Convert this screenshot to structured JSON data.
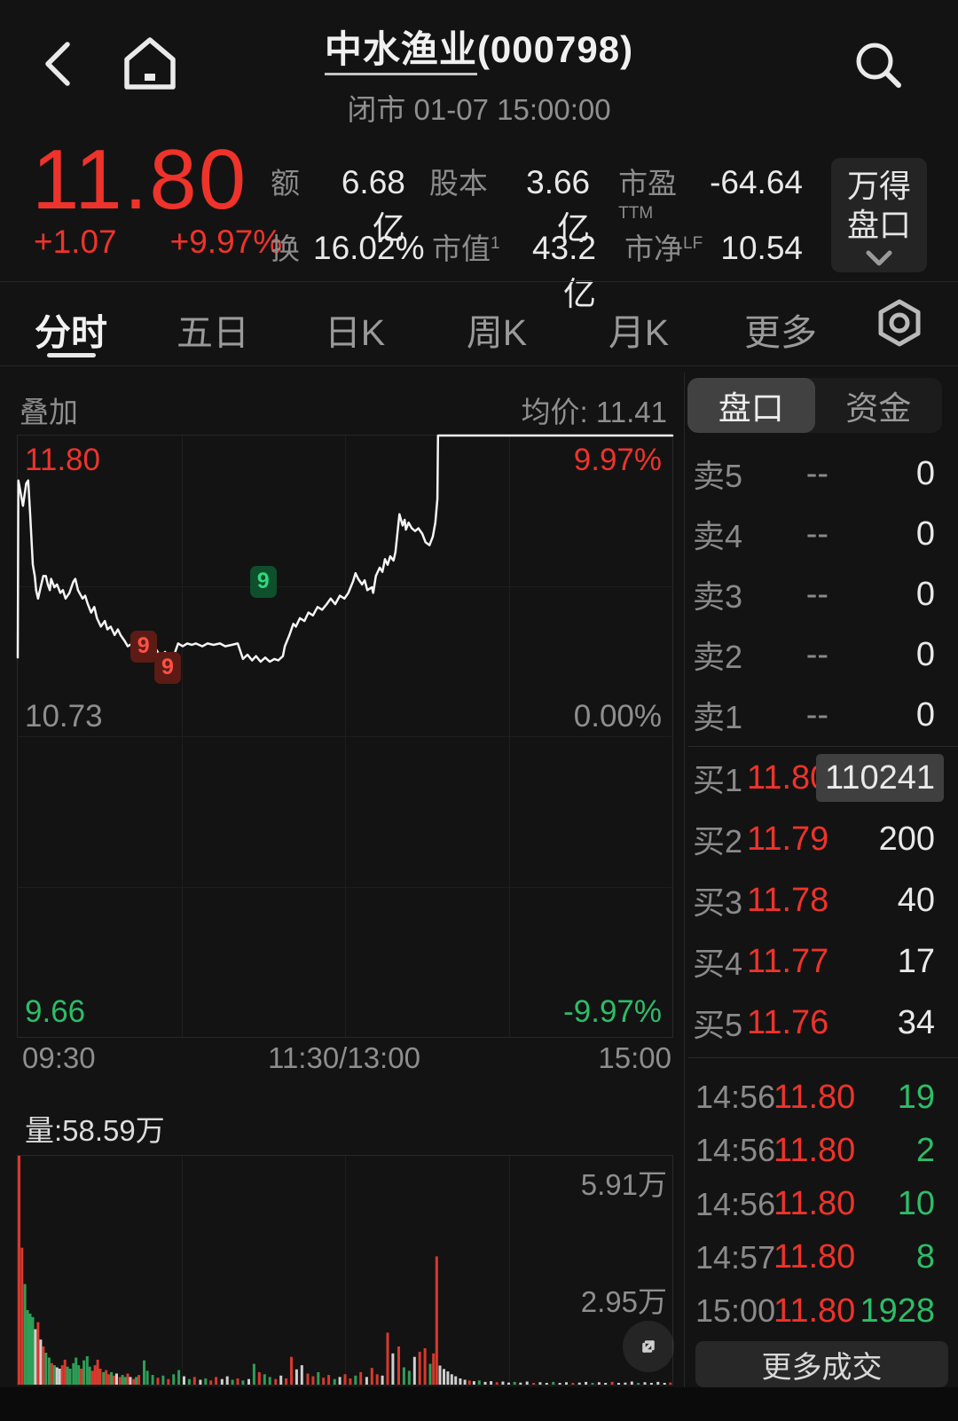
{
  "header": {
    "title_name": "中水渔业",
    "title_code": "(000798)",
    "subtitle": "闭市 01-07 15:00:00"
  },
  "quote": {
    "price": "11.80",
    "change": "+1.07",
    "change_pct": "+9.97%",
    "stats": [
      {
        "label": "额",
        "sup": "",
        "value": "6.68亿"
      },
      {
        "label": "股本",
        "sup": "",
        "value": "3.66亿"
      },
      {
        "label": "市盈",
        "sup": "TTM",
        "value": "-64.64"
      },
      {
        "label": "换",
        "sup": "",
        "value": "16.02%"
      },
      {
        "label": "市值",
        "sup": "1",
        "value": "43.2亿"
      },
      {
        "label": "市净",
        "sup": "LF",
        "value": "10.54"
      }
    ],
    "wind_button": {
      "line1": "万得",
      "line2": "盘口"
    }
  },
  "period_tabs": {
    "items": [
      "分时",
      "五日",
      "日K",
      "周K",
      "月K",
      "更多"
    ],
    "active": 0
  },
  "chart_header": {
    "overlay": "叠加",
    "avg_label": "均价: 11.41"
  },
  "panel_tabs": {
    "items": [
      "盘口",
      "资金"
    ],
    "active": 0
  },
  "order_book": {
    "sells": [
      {
        "label": "卖5",
        "price": "--",
        "volume": "0"
      },
      {
        "label": "卖4",
        "price": "--",
        "volume": "0"
      },
      {
        "label": "卖3",
        "price": "--",
        "volume": "0"
      },
      {
        "label": "卖2",
        "price": "--",
        "volume": "0"
      },
      {
        "label": "卖1",
        "price": "--",
        "volume": "0"
      }
    ],
    "buys": [
      {
        "label": "买1",
        "price": "11.80",
        "volume": "110241",
        "highlight": true
      },
      {
        "label": "买2",
        "price": "11.79",
        "volume": "200"
      },
      {
        "label": "买3",
        "price": "11.78",
        "volume": "40"
      },
      {
        "label": "买4",
        "price": "11.77",
        "volume": "17"
      },
      {
        "label": "买5",
        "price": "11.76",
        "volume": "34"
      }
    ]
  },
  "trades": {
    "rows": [
      {
        "time": "14:56",
        "price": "11.80",
        "volume": "19"
      },
      {
        "time": "14:56",
        "price": "11.80",
        "volume": "2"
      },
      {
        "time": "14:56",
        "price": "11.80",
        "volume": "10"
      },
      {
        "time": "14:57",
        "price": "11.80",
        "volume": "8"
      },
      {
        "time": "15:00",
        "price": "11.80",
        "volume": "1928"
      }
    ],
    "more_label": "更多成交"
  },
  "colors": {
    "red": "#ee332b",
    "green": "#2dbd68",
    "gray": "#8e8e8e",
    "white": "#e9e9e9",
    "bar_red": "#d9392d",
    "bar_green": "#2f9e57",
    "bar_white": "#cfcfcf",
    "line": "#f5f5f5"
  },
  "chart_data": {
    "type": "line",
    "title": "中水渔业(000798) 分时",
    "price_chart": {
      "ylim": [
        9.66,
        11.8
      ],
      "prev_close": 10.73,
      "labels": {
        "top_left": "11.80",
        "top_right": "9.97%",
        "mid_left": "10.73",
        "mid_right": "0.00%",
        "bottom_left": "9.66",
        "bottom_right": "-9.97%"
      },
      "x_axis": [
        "09:30",
        "11:30/13:00",
        "15:00"
      ],
      "markers": [
        {
          "fx": 0.192,
          "fy": 0.351,
          "text": "9",
          "color": "red"
        },
        {
          "fx": 0.229,
          "fy": 0.386,
          "text": "9",
          "color": "red"
        },
        {
          "fx": 0.375,
          "fy": 0.243,
          "text": "9",
          "color": "green"
        }
      ],
      "line": [
        [
          0.0,
          11.01
        ],
        [
          0.001,
          11.64
        ],
        [
          0.008,
          11.55
        ],
        [
          0.013,
          11.63
        ],
        [
          0.016,
          11.64
        ],
        [
          0.019,
          11.52
        ],
        [
          0.023,
          11.34
        ],
        [
          0.026,
          11.3
        ],
        [
          0.028,
          11.25
        ],
        [
          0.031,
          11.22
        ],
        [
          0.035,
          11.26
        ],
        [
          0.039,
          11.3
        ],
        [
          0.043,
          11.3
        ],
        [
          0.046,
          11.27
        ],
        [
          0.049,
          11.25
        ],
        [
          0.051,
          11.29
        ],
        [
          0.056,
          11.26
        ],
        [
          0.06,
          11.27
        ],
        [
          0.065,
          11.24
        ],
        [
          0.069,
          11.25
        ],
        [
          0.073,
          11.22
        ],
        [
          0.079,
          11.24
        ],
        [
          0.085,
          11.28
        ],
        [
          0.088,
          11.29
        ],
        [
          0.092,
          11.25
        ],
        [
          0.099,
          11.22
        ],
        [
          0.103,
          11.23
        ],
        [
          0.107,
          11.2
        ],
        [
          0.112,
          11.17
        ],
        [
          0.117,
          11.19
        ],
        [
          0.121,
          11.15
        ],
        [
          0.127,
          11.12
        ],
        [
          0.133,
          11.14
        ],
        [
          0.137,
          11.11
        ],
        [
          0.142,
          11.12
        ],
        [
          0.148,
          11.09
        ],
        [
          0.153,
          11.11
        ],
        [
          0.157,
          11.09
        ],
        [
          0.163,
          11.07
        ],
        [
          0.168,
          11.05
        ],
        [
          0.175,
          11.06
        ],
        [
          0.182,
          11.04
        ],
        [
          0.187,
          11.05
        ],
        [
          0.192,
          11.03
        ],
        [
          0.198,
          11.04
        ],
        [
          0.205,
          11.02
        ],
        [
          0.211,
          11.04
        ],
        [
          0.218,
          11.015
        ],
        [
          0.225,
          11.03
        ],
        [
          0.232,
          11.01
        ],
        [
          0.239,
          11.02
        ],
        [
          0.245,
          11.06
        ],
        [
          0.252,
          11.05
        ],
        [
          0.259,
          11.06
        ],
        [
          0.266,
          11.055
        ],
        [
          0.272,
          11.06
        ],
        [
          0.282,
          11.05
        ],
        [
          0.29,
          11.06
        ],
        [
          0.299,
          11.055
        ],
        [
          0.309,
          11.06
        ],
        [
          0.317,
          11.05
        ],
        [
          0.327,
          11.055
        ],
        [
          0.336,
          11.06
        ],
        [
          0.344,
          11.005
        ],
        [
          0.351,
          11.02
        ],
        [
          0.358,
          11.0
        ],
        [
          0.364,
          11.015
        ],
        [
          0.371,
          10.995
        ],
        [
          0.378,
          11.01
        ],
        [
          0.385,
          10.995
        ],
        [
          0.392,
          11.005
        ],
        [
          0.398,
          11.0
        ],
        [
          0.405,
          11.015
        ],
        [
          0.408,
          11.05
        ],
        [
          0.415,
          11.09
        ],
        [
          0.421,
          11.13
        ],
        [
          0.425,
          11.12
        ],
        [
          0.431,
          11.15
        ],
        [
          0.438,
          11.14
        ],
        [
          0.444,
          11.17
        ],
        [
          0.451,
          11.16
        ],
        [
          0.458,
          11.19
        ],
        [
          0.465,
          11.18
        ],
        [
          0.472,
          11.2
        ],
        [
          0.478,
          11.22
        ],
        [
          0.485,
          11.2
        ],
        [
          0.492,
          11.23
        ],
        [
          0.499,
          11.22
        ],
        [
          0.505,
          11.24
        ],
        [
          0.512,
          11.28
        ],
        [
          0.516,
          11.31
        ],
        [
          0.52,
          11.29
        ],
        [
          0.526,
          11.27
        ],
        [
          0.53,
          11.285
        ],
        [
          0.534,
          11.25
        ],
        [
          0.541,
          11.26
        ],
        [
          0.543,
          11.24
        ],
        [
          0.547,
          11.3
        ],
        [
          0.553,
          11.33
        ],
        [
          0.557,
          11.315
        ],
        [
          0.561,
          11.36
        ],
        [
          0.565,
          11.34
        ],
        [
          0.569,
          11.37
        ],
        [
          0.574,
          11.355
        ],
        [
          0.577,
          11.385
        ],
        [
          0.583,
          11.52
        ],
        [
          0.588,
          11.48
        ],
        [
          0.591,
          11.5
        ],
        [
          0.593,
          11.465
        ],
        [
          0.597,
          11.49
        ],
        [
          0.602,
          11.47
        ],
        [
          0.607,
          11.46
        ],
        [
          0.612,
          11.47
        ],
        [
          0.618,
          11.45
        ],
        [
          0.623,
          11.42
        ],
        [
          0.629,
          11.41
        ],
        [
          0.634,
          11.44
        ],
        [
          0.638,
          11.49
        ],
        [
          0.641,
          11.575
        ],
        [
          0.642,
          11.8
        ],
        [
          1.0,
          11.8
        ]
      ]
    },
    "volume_chart": {
      "label": "量:58.59万",
      "right_labels": [
        "5.91万",
        "2.95万"
      ],
      "unit": "万",
      "vmax": 6.6,
      "bars": [
        [
          0.0,
          6.6,
          "r"
        ],
        [
          0.0045,
          3.95,
          "r"
        ],
        [
          0.009,
          2.9,
          "g"
        ],
        [
          0.013,
          2.15,
          "g"
        ],
        [
          0.017,
          2.05,
          "g"
        ],
        [
          0.021,
          1.95,
          "g"
        ],
        [
          0.025,
          1.6,
          "w"
        ],
        [
          0.029,
          1.8,
          "r"
        ],
        [
          0.033,
          1.3,
          "w"
        ],
        [
          0.037,
          1.1,
          "r"
        ],
        [
          0.041,
          0.92,
          "g"
        ],
        [
          0.046,
          0.78,
          "g"
        ],
        [
          0.05,
          0.62,
          "r"
        ],
        [
          0.054,
          0.56,
          "g"
        ],
        [
          0.058,
          0.5,
          "w"
        ],
        [
          0.062,
          0.46,
          "w"
        ],
        [
          0.066,
          0.56,
          "r"
        ],
        [
          0.07,
          0.72,
          "r"
        ],
        [
          0.074,
          0.52,
          "g"
        ],
        [
          0.078,
          0.46,
          "g"
        ],
        [
          0.083,
          0.62,
          "g"
        ],
        [
          0.087,
          0.78,
          "g"
        ],
        [
          0.091,
          0.56,
          "g"
        ],
        [
          0.095,
          0.46,
          "r"
        ],
        [
          0.099,
          0.7,
          "g"
        ],
        [
          0.104,
          0.82,
          "g"
        ],
        [
          0.108,
          0.52,
          "g"
        ],
        [
          0.112,
          0.4,
          "r"
        ],
        [
          0.116,
          0.56,
          "r"
        ],
        [
          0.12,
          0.72,
          "r"
        ],
        [
          0.124,
          0.46,
          "r"
        ],
        [
          0.129,
          0.36,
          "g"
        ],
        [
          0.133,
          0.42,
          "r"
        ],
        [
          0.137,
          0.3,
          "r"
        ],
        [
          0.141,
          0.36,
          "g"
        ],
        [
          0.145,
          0.26,
          "r"
        ],
        [
          0.149,
          0.32,
          "w"
        ],
        [
          0.154,
          0.22,
          "r"
        ],
        [
          0.158,
          0.28,
          "g"
        ],
        [
          0.162,
          0.22,
          "g"
        ],
        [
          0.166,
          0.32,
          "r"
        ],
        [
          0.17,
          0.22,
          "w"
        ],
        [
          0.175,
          0.16,
          "r"
        ],
        [
          0.179,
          0.22,
          "g"
        ],
        [
          0.183,
          0.28,
          "r"
        ],
        [
          0.191,
          0.7,
          "g"
        ],
        [
          0.196,
          0.4,
          "g"
        ],
        [
          0.204,
          0.28,
          "g"
        ],
        [
          0.212,
          0.2,
          "r"
        ],
        [
          0.22,
          0.26,
          "g"
        ],
        [
          0.228,
          0.16,
          "r"
        ],
        [
          0.236,
          0.3,
          "g"
        ],
        [
          0.244,
          0.42,
          "g"
        ],
        [
          0.252,
          0.24,
          "w"
        ],
        [
          0.26,
          0.16,
          "g"
        ],
        [
          0.268,
          0.22,
          "r"
        ],
        [
          0.277,
          0.14,
          "w"
        ],
        [
          0.285,
          0.18,
          "g"
        ],
        [
          0.293,
          0.12,
          "r"
        ],
        [
          0.301,
          0.22,
          "r"
        ],
        [
          0.31,
          0.16,
          "w"
        ],
        [
          0.318,
          0.24,
          "w"
        ],
        [
          0.326,
          0.14,
          "g"
        ],
        [
          0.334,
          0.18,
          "r"
        ],
        [
          0.342,
          0.12,
          "g"
        ],
        [
          0.351,
          0.16,
          "w"
        ],
        [
          0.359,
          0.6,
          "g"
        ],
        [
          0.367,
          0.36,
          "r"
        ],
        [
          0.375,
          0.3,
          "g"
        ],
        [
          0.383,
          0.22,
          "g"
        ],
        [
          0.392,
          0.16,
          "r"
        ],
        [
          0.4,
          0.26,
          "w"
        ],
        [
          0.408,
          0.18,
          "r"
        ],
        [
          0.416,
          0.8,
          "r"
        ],
        [
          0.424,
          0.44,
          "w"
        ],
        [
          0.432,
          0.56,
          "w"
        ],
        [
          0.441,
          0.32,
          "r"
        ],
        [
          0.449,
          0.24,
          "r"
        ],
        [
          0.457,
          0.36,
          "g"
        ],
        [
          0.465,
          0.2,
          "r"
        ],
        [
          0.473,
          0.28,
          "r"
        ],
        [
          0.482,
          0.16,
          "g"
        ],
        [
          0.49,
          0.22,
          "w"
        ],
        [
          0.498,
          0.3,
          "r"
        ],
        [
          0.506,
          0.18,
          "r"
        ],
        [
          0.514,
          0.26,
          "g"
        ],
        [
          0.522,
          0.36,
          "r"
        ],
        [
          0.531,
          0.22,
          "w"
        ],
        [
          0.539,
          0.48,
          "r"
        ],
        [
          0.547,
          0.3,
          "r"
        ],
        [
          0.555,
          0.26,
          "w"
        ],
        [
          0.563,
          1.5,
          "r"
        ],
        [
          0.571,
          0.9,
          "w"
        ],
        [
          0.58,
          1.1,
          "r"
        ],
        [
          0.588,
          0.5,
          "g"
        ],
        [
          0.596,
          0.4,
          "g"
        ],
        [
          0.604,
          0.8,
          "w"
        ],
        [
          0.612,
          0.95,
          "r"
        ],
        [
          0.62,
          1.05,
          "r"
        ],
        [
          0.628,
          0.6,
          "g"
        ],
        [
          0.633,
          0.9,
          "r"
        ],
        [
          0.638,
          3.7,
          "r"
        ],
        [
          0.643,
          0.55,
          "w"
        ],
        [
          0.649,
          0.45,
          "w"
        ],
        [
          0.655,
          0.38,
          "w"
        ],
        [
          0.661,
          0.3,
          "w"
        ],
        [
          0.667,
          0.24,
          "w"
        ],
        [
          0.674,
          0.18,
          "w"
        ],
        [
          0.681,
          0.14,
          "w"
        ],
        [
          0.688,
          0.12,
          "r"
        ],
        [
          0.695,
          0.1,
          "w"
        ],
        [
          0.703,
          0.12,
          "g"
        ],
        [
          0.712,
          0.08,
          "w"
        ],
        [
          0.721,
          0.1,
          "w"
        ],
        [
          0.73,
          0.07,
          "r"
        ],
        [
          0.739,
          0.09,
          "w"
        ],
        [
          0.748,
          0.06,
          "w"
        ],
        [
          0.757,
          0.08,
          "g"
        ],
        [
          0.766,
          0.06,
          "w"
        ],
        [
          0.776,
          0.09,
          "w"
        ],
        [
          0.786,
          0.05,
          "r"
        ],
        [
          0.796,
          0.07,
          "w"
        ],
        [
          0.806,
          0.05,
          "w"
        ],
        [
          0.816,
          0.08,
          "g"
        ],
        [
          0.826,
          0.05,
          "w"
        ],
        [
          0.836,
          0.07,
          "w"
        ],
        [
          0.846,
          0.05,
          "r"
        ],
        [
          0.856,
          0.06,
          "w"
        ],
        [
          0.866,
          0.08,
          "w"
        ],
        [
          0.876,
          0.05,
          "g"
        ],
        [
          0.886,
          0.07,
          "w"
        ],
        [
          0.896,
          0.05,
          "w"
        ],
        [
          0.906,
          0.08,
          "r"
        ],
        [
          0.916,
          0.05,
          "w"
        ],
        [
          0.926,
          0.06,
          "w"
        ],
        [
          0.936,
          0.09,
          "w"
        ],
        [
          0.946,
          0.05,
          "g"
        ],
        [
          0.956,
          0.07,
          "w"
        ],
        [
          0.966,
          0.05,
          "w"
        ],
        [
          0.976,
          0.08,
          "w"
        ],
        [
          0.986,
          0.05,
          "w"
        ],
        [
          0.995,
          0.06,
          "r"
        ]
      ]
    }
  }
}
